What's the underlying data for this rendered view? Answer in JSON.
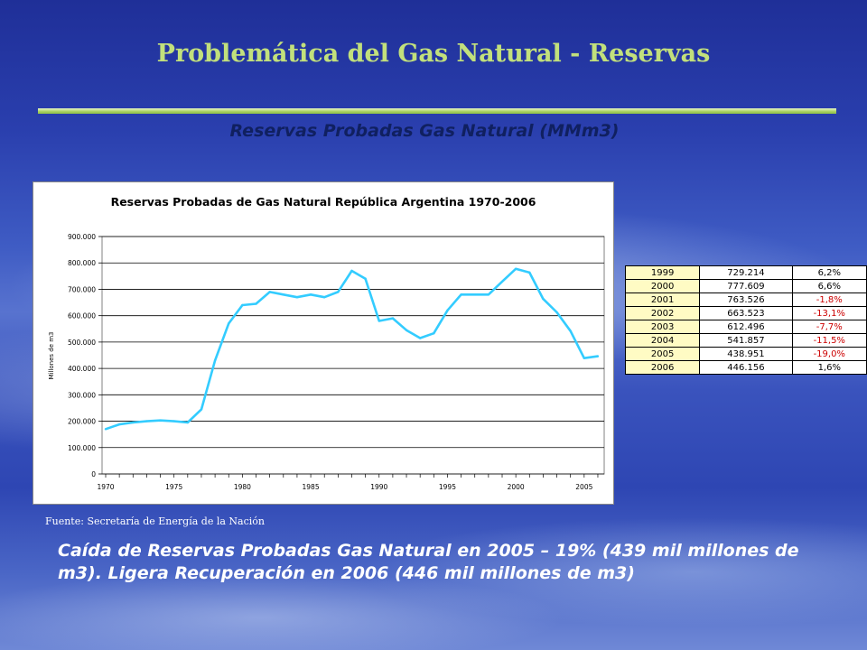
{
  "slide": {
    "title": "Problemática del Gas Natural - Reservas",
    "subtitle": "Reservas Probadas Gas Natural (MMm3)",
    "source": "Fuente: Secretaría de Energía de la Nación",
    "caption": "Caída de Reservas Probadas Gas Natural en 2005 – 19% (439 mil millones de m3). Ligera Recuperación en 2006 (446 mil millones de m3)"
  },
  "colors": {
    "title": "#c2e07c",
    "line": "#33ccff",
    "negative": "#cc0000"
  },
  "table": {
    "rows": [
      {
        "year": "1999",
        "value": "729.214",
        "pct": "6,2%",
        "neg": false
      },
      {
        "year": "2000",
        "value": "777.609",
        "pct": "6,6%",
        "neg": false
      },
      {
        "year": "2001",
        "value": "763.526",
        "pct": "-1,8%",
        "neg": true
      },
      {
        "year": "2002",
        "value": "663.523",
        "pct": "-13,1%",
        "neg": true
      },
      {
        "year": "2003",
        "value": "612.496",
        "pct": "-7,7%",
        "neg": true
      },
      {
        "year": "2004",
        "value": "541.857",
        "pct": "-11,5%",
        "neg": true
      },
      {
        "year": "2005",
        "value": "438.951",
        "pct": "-19,0%",
        "neg": true
      },
      {
        "year": "2006",
        "value": "446.156",
        "pct": "1,6%",
        "neg": false
      }
    ]
  },
  "chart_data": {
    "type": "line",
    "title": "Reservas Probadas de Gas Natural República Argentina 1970-2006",
    "xlabel": "",
    "ylabel": "Millones de m3",
    "xlim": [
      1970,
      2006
    ],
    "ylim": [
      0,
      900000
    ],
    "yticks": [
      0,
      100000,
      200000,
      300000,
      400000,
      500000,
      600000,
      700000,
      800000,
      900000
    ],
    "ytick_labels": [
      "0",
      "100.000",
      "200.000",
      "300.000",
      "400.000",
      "500.000",
      "600.000",
      "700.000",
      "800.000",
      "900.000"
    ],
    "xtick_labels": [
      "1970",
      "1975",
      "1980",
      "1985",
      "1990",
      "1995",
      "2000",
      "2005"
    ],
    "xticks": [
      1970,
      1975,
      1980,
      1985,
      1990,
      1995,
      2000,
      2005
    ],
    "grid": "horizontal",
    "legend": "none",
    "x": [
      1970,
      1971,
      1972,
      1973,
      1974,
      1975,
      1976,
      1977,
      1978,
      1979,
      1980,
      1981,
      1982,
      1983,
      1984,
      1985,
      1986,
      1987,
      1988,
      1989,
      1990,
      1991,
      1992,
      1993,
      1994,
      1995,
      1996,
      1997,
      1998,
      1999,
      2000,
      2001,
      2002,
      2003,
      2004,
      2005,
      2006
    ],
    "series": [
      {
        "values": [
          170000,
          188000,
          195000,
          200000,
          203000,
          200000,
          195000,
          245000,
          430000,
          570000,
          640000,
          645000,
          690000,
          680000,
          670000,
          680000,
          670000,
          690000,
          770000,
          740000,
          580000,
          590000,
          545000,
          515000,
          533000,
          620000,
          680000,
          680000,
          680000,
          729214,
          777609,
          763526,
          663523,
          612496,
          541857,
          438951,
          446156
        ]
      }
    ]
  }
}
